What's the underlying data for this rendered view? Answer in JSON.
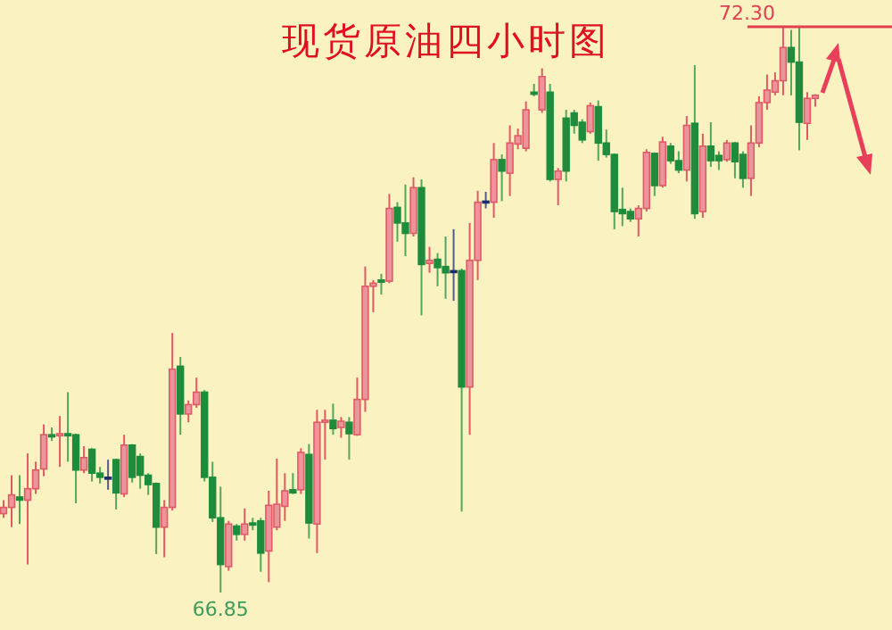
{
  "chart_data": {
    "type": "candlestick",
    "title": "现货原油四小时图",
    "categories": [
      null,
      null,
      null,
      null,
      null,
      null,
      null,
      null,
      null,
      null,
      null,
      null,
      null,
      null,
      null,
      null,
      null,
      null,
      null,
      null,
      null,
      null,
      null,
      null,
      null,
      null,
      null,
      null,
      null,
      null,
      null,
      null,
      null,
      null,
      null,
      null,
      null,
      null,
      null,
      null,
      null,
      null,
      null,
      null,
      null,
      null,
      null,
      null,
      null,
      null,
      null,
      null,
      null,
      null,
      null,
      null,
      null,
      null,
      null,
      null,
      null,
      null,
      null,
      null,
      null,
      null,
      null,
      null,
      null,
      null,
      null,
      null,
      null,
      null,
      null,
      null,
      null,
      null,
      null,
      null,
      null,
      null,
      null,
      null,
      null,
      null,
      null,
      null,
      null,
      null,
      null,
      null,
      null,
      null,
      null,
      null,
      null,
      null,
      null,
      null,
      null,
      null
    ],
    "ohlc": [
      [
        67.61,
        67.74,
        67.57,
        67.67
      ],
      [
        67.67,
        67.98,
        67.48,
        67.79
      ],
      [
        67.77,
        67.98,
        67.51,
        67.74
      ],
      [
        67.74,
        68.19,
        67.12,
        67.85
      ],
      [
        67.85,
        68.11,
        67.8,
        68.03
      ],
      [
        68.04,
        68.47,
        67.97,
        68.37
      ],
      [
        68.37,
        68.44,
        68.31,
        68.35
      ],
      [
        68.36,
        68.55,
        68.06,
        68.38
      ],
      [
        68.38,
        68.78,
        68.11,
        68.36
      ],
      [
        68.37,
        68.38,
        67.71,
        68.03
      ],
      [
        68.03,
        68.26,
        68.0,
        68.15
      ],
      [
        68.23,
        68.24,
        67.92,
        68.0
      ],
      [
        68.0,
        68.06,
        67.9,
        67.96
      ],
      [
        67.96,
        68.13,
        67.84,
        67.96
      ],
      [
        68.13,
        68.14,
        67.65,
        67.81
      ],
      [
        67.8,
        68.37,
        67.77,
        68.27
      ],
      [
        68.27,
        68.28,
        67.91,
        67.96
      ],
      [
        68.16,
        68.19,
        67.85,
        67.98
      ],
      [
        67.98,
        68.0,
        67.79,
        67.89
      ],
      [
        67.9,
        67.91,
        67.22,
        67.48
      ],
      [
        67.48,
        67.74,
        67.19,
        67.67
      ],
      [
        67.67,
        69.35,
        67.64,
        69.0
      ],
      [
        69.03,
        69.12,
        68.37,
        68.57
      ],
      [
        68.57,
        68.7,
        68.49,
        68.66
      ],
      [
        68.66,
        68.92,
        68.63,
        68.78
      ],
      [
        68.78,
        68.8,
        67.92,
        67.96
      ],
      [
        67.96,
        68.11,
        67.53,
        67.57
      ],
      [
        67.57,
        67.87,
        66.85,
        67.12
      ],
      [
        67.1,
        67.54,
        67.06,
        67.51
      ],
      [
        67.49,
        67.51,
        67.35,
        67.41
      ],
      [
        67.41,
        67.66,
        67.35,
        67.51
      ],
      [
        67.52,
        67.57,
        67.45,
        67.5
      ],
      [
        67.54,
        67.57,
        67.05,
        67.23
      ],
      [
        67.25,
        67.83,
        66.95,
        67.69
      ],
      [
        67.48,
        68.14,
        67.45,
        67.7
      ],
      [
        67.68,
        68.0,
        67.54,
        67.83
      ],
      [
        67.84,
        68.0,
        67.8,
        67.81
      ],
      [
        67.84,
        68.24,
        67.8,
        68.2
      ],
      [
        68.18,
        68.28,
        67.37,
        67.52
      ],
      [
        67.51,
        68.61,
        67.23,
        68.49
      ],
      [
        68.49,
        68.61,
        68.13,
        68.51
      ],
      [
        68.51,
        68.67,
        68.37,
        68.43
      ],
      [
        68.44,
        68.54,
        68.34,
        68.5
      ],
      [
        68.49,
        68.54,
        68.13,
        68.38
      ],
      [
        68.37,
        68.92,
        68.36,
        68.71
      ],
      [
        68.71,
        69.99,
        68.59,
        69.8
      ],
      [
        69.8,
        69.86,
        69.55,
        69.83
      ],
      [
        69.86,
        69.92,
        69.72,
        69.84
      ],
      [
        69.85,
        70.69,
        69.83,
        70.55
      ],
      [
        70.56,
        70.61,
        70.23,
        70.41
      ],
      [
        70.41,
        70.78,
        70.09,
        70.31
      ],
      [
        70.31,
        70.85,
        70.28,
        70.75
      ],
      [
        70.75,
        70.83,
        69.52,
        70.01
      ],
      [
        70.02,
        70.18,
        69.93,
        70.05
      ],
      [
        70.06,
        70.12,
        69.8,
        69.98
      ],
      [
        69.99,
        70.28,
        69.68,
        69.93
      ],
      [
        69.95,
        70.35,
        69.66,
        69.95
      ],
      [
        69.95,
        69.97,
        67.63,
        68.83
      ],
      [
        68.83,
        70.41,
        68.37,
        70.05
      ],
      [
        70.05,
        70.72,
        69.86,
        70.61
      ],
      [
        70.62,
        70.71,
        70.55,
        70.62
      ],
      [
        70.61,
        71.18,
        70.46,
        71.02
      ],
      [
        71.02,
        71.07,
        70.62,
        70.91
      ],
      [
        70.89,
        71.35,
        70.67,
        71.18
      ],
      [
        71.17,
        71.32,
        71.12,
        71.25
      ],
      [
        71.13,
        71.58,
        71.1,
        71.5
      ],
      [
        71.67,
        71.75,
        71.63,
        71.65
      ],
      [
        71.5,
        71.9,
        71.47,
        71.82
      ],
      [
        71.67,
        71.75,
        70.81,
        70.83
      ],
      [
        70.83,
        70.94,
        70.58,
        70.91
      ],
      [
        71.42,
        71.5,
        70.81,
        70.91
      ],
      [
        71.47,
        71.5,
        71.27,
        71.35
      ],
      [
        71.38,
        71.41,
        71.18,
        71.21
      ],
      [
        71.29,
        71.57,
        71.27,
        71.54
      ],
      [
        71.53,
        71.59,
        71.01,
        71.18
      ],
      [
        71.18,
        71.31,
        71.04,
        71.07
      ],
      [
        71.07,
        71.08,
        70.35,
        70.52
      ],
      [
        70.54,
        70.75,
        70.38,
        70.5
      ],
      [
        70.52,
        70.55,
        70.42,
        70.45
      ],
      [
        70.45,
        70.58,
        70.28,
        70.55
      ],
      [
        70.55,
        71.12,
        70.52,
        71.09
      ],
      [
        71.08,
        71.09,
        70.67,
        70.77
      ],
      [
        70.77,
        71.24,
        70.75,
        71.19
      ],
      [
        71.15,
        71.18,
        70.98,
        71.01
      ],
      [
        71.01,
        71.1,
        70.89,
        70.92
      ],
      [
        70.92,
        71.44,
        70.81,
        71.35
      ],
      [
        71.37,
        71.93,
        70.45,
        70.5
      ],
      [
        70.52,
        71.27,
        70.46,
        71.15
      ],
      [
        71.15,
        71.38,
        70.95,
        71.01
      ],
      [
        71.06,
        71.1,
        70.92,
        71.01
      ],
      [
        71.02,
        71.21,
        71.0,
        71.18
      ],
      [
        71.18,
        71.19,
        70.84,
        71.0
      ],
      [
        71.07,
        71.1,
        70.75,
        70.84
      ],
      [
        70.84,
        71.35,
        70.67,
        71.18
      ],
      [
        71.18,
        71.63,
        71.14,
        71.57
      ],
      [
        71.57,
        71.84,
        71.5,
        71.69
      ],
      [
        71.67,
        71.86,
        71.64,
        71.78
      ],
      [
        71.78,
        72.3,
        71.64,
        72.1
      ],
      [
        72.1,
        72.27,
        71.64,
        71.96
      ],
      [
        71.96,
        72.3,
        71.11,
        71.38
      ],
      [
        71.37,
        71.67,
        71.21,
        71.61
      ],
      [
        71.61,
        71.65,
        71.53,
        71.64
      ]
    ],
    "colors": [
      "#e05a66",
      "#e05a66",
      "#1e8c3c",
      "#e05a66",
      "#e05a66",
      "#e05a66",
      "#1e8c3c",
      "#e05a66",
      "#1e8c3c",
      "#1e8c3c",
      "#e05a66",
      "#1e8c3c",
      "#1e8c3c",
      "#1c2c70",
      "#1e8c3c",
      "#e05a66",
      "#1e8c3c",
      "#1e8c3c",
      "#1e8c3c",
      "#1e8c3c",
      "#e05a66",
      "#e05a66",
      "#1e8c3c",
      "#e05a66",
      "#e05a66",
      "#1e8c3c",
      "#1e8c3c",
      "#1e8c3c",
      "#e05a66",
      "#1e8c3c",
      "#e05a66",
      "#1e8c3c",
      "#1e8c3c",
      "#e05a66",
      "#e05a66",
      "#e05a66",
      "#1e8c3c",
      "#e05a66",
      "#1e8c3c",
      "#e05a66",
      "#e05a66",
      "#1e8c3c",
      "#e05a66",
      "#1e8c3c",
      "#e05a66",
      "#e05a66",
      "#e05a66",
      "#1e8c3c",
      "#e05a66",
      "#1e8c3c",
      "#1e8c3c",
      "#e05a66",
      "#1e8c3c",
      "#e05a66",
      "#1e8c3c",
      "#1e8c3c",
      "#1c2c70",
      "#1e8c3c",
      "#e05a66",
      "#e05a66",
      "#1c2c70",
      "#e05a66",
      "#1e8c3c",
      "#e05a66",
      "#e05a66",
      "#e05a66",
      "#1e8c3c",
      "#e05a66",
      "#1e8c3c",
      "#e05a66",
      "#1e8c3c",
      "#1e8c3c",
      "#1e8c3c",
      "#e05a66",
      "#1e8c3c",
      "#1e8c3c",
      "#1e8c3c",
      "#1e8c3c",
      "#1e8c3c",
      "#e05a66",
      "#e05a66",
      "#1e8c3c",
      "#e05a66",
      "#1e8c3c",
      "#1e8c3c",
      "#e05a66",
      "#1e8c3c",
      "#e05a66",
      "#1e8c3c",
      "#1e8c3c",
      "#e05a66",
      "#1e8c3c",
      "#1e8c3c",
      "#e05a66",
      "#e05a66",
      "#e05a66",
      "#e05a66",
      "#e05a66",
      "#1e8c3c",
      "#1e8c3c",
      "#e05a66",
      "#e05a66"
    ],
    "ref_lines": [
      {
        "axis": "y",
        "value": 72.3,
        "label": "72.30",
        "color": "#e04050"
      }
    ],
    "annotations": [
      {
        "text": "66.85",
        "y": 66.85
      }
    ]
  }
}
